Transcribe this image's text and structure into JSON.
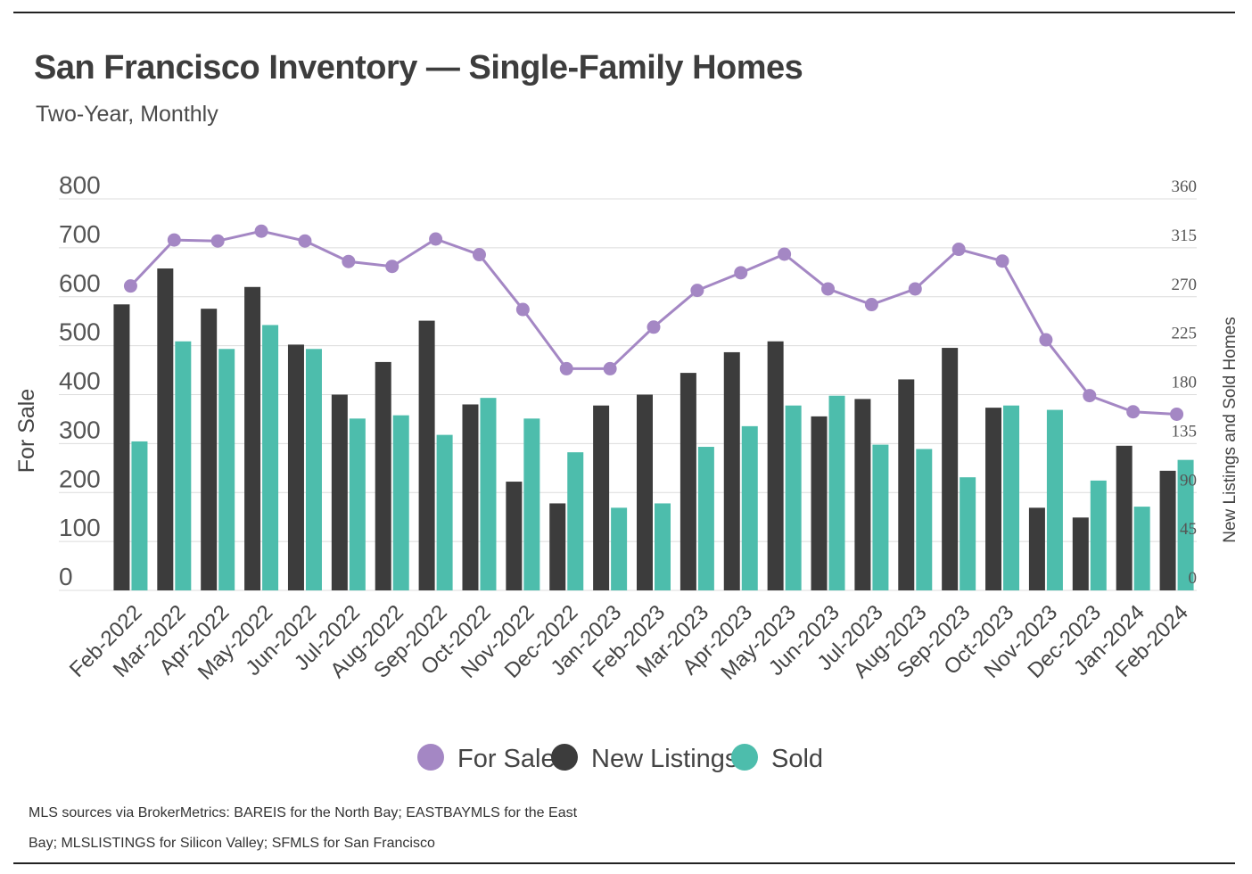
{
  "header": {
    "title": "San Francisco Inventory — Single-Family Homes",
    "subtitle": "Two-Year, Monthly"
  },
  "footer": {
    "source_line1": "MLS sources via BrokerMetrics: BAREIS for the North Bay; EASTBAYMLS for the East",
    "source_line2": "Bay; MLSLISTINGS for Silicon Valley; SFMLS for San Francisco"
  },
  "colors": {
    "for_sale": "#a487c4",
    "new_listings": "#3c3c3c",
    "sold": "#4dbdac",
    "grid": "#dcdcdc"
  },
  "chart_data": {
    "type": "bar",
    "categories": [
      "Feb-2022",
      "Mar-2022",
      "Apr-2022",
      "May-2022",
      "Jun-2022",
      "Jul-2022",
      "Aug-2022",
      "Sep-2022",
      "Oct-2022",
      "Nov-2022",
      "Dec-2022",
      "Jan-2023",
      "Feb-2023",
      "Mar-2023",
      "Apr-2023",
      "May-2023",
      "Jun-2023",
      "Jul-2023",
      "Aug-2023",
      "Sep-2023",
      "Oct-2023",
      "Nov-2023",
      "Dec-2023",
      "Jan-2024",
      "Feb-2024"
    ],
    "ylabel": "For Sale",
    "y2label": "New Listings and Sold Homes",
    "ylim": [
      0,
      800
    ],
    "y2lim": [
      0,
      360
    ],
    "yticks": [
      0,
      100,
      200,
      300,
      400,
      500,
      600,
      700,
      800
    ],
    "y2ticks": [
      0,
      45,
      90,
      135,
      180,
      225,
      270,
      315,
      360
    ],
    "grid": true,
    "legend_position": "bottom",
    "series": [
      {
        "name": "For Sale",
        "type": "line",
        "axis": "left",
        "values": [
          622,
          716,
          714,
          734,
          714,
          672,
          662,
          718,
          686,
          574,
          453,
          453,
          538,
          613,
          649,
          687,
          616,
          584,
          616,
          697,
          673,
          512,
          398,
          365,
          360
        ]
      },
      {
        "name": "New Listings",
        "type": "bar",
        "axis": "right",
        "values": [
          263,
          296,
          259,
          279,
          226,
          180,
          210,
          248,
          171,
          100,
          80,
          170,
          180,
          200,
          219,
          229,
          160,
          176,
          194,
          223,
          168,
          76,
          67,
          133,
          110
        ]
      },
      {
        "name": "Sold",
        "type": "bar",
        "axis": "right",
        "values": [
          137,
          229,
          222,
          244,
          222,
          158,
          161,
          143,
          177,
          158,
          127,
          76,
          80,
          132,
          151,
          170,
          179,
          134,
          130,
          104,
          170,
          166,
          101,
          77,
          120
        ]
      }
    ]
  }
}
